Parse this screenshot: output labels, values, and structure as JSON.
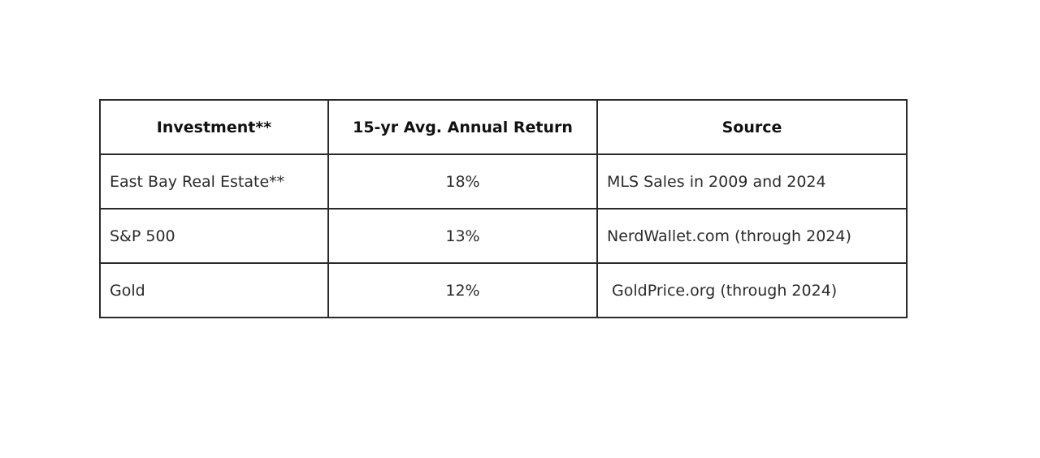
{
  "table": {
    "headers": [
      "Investment**",
      "15-yr Avg. Annual Return",
      "Source"
    ],
    "rows": [
      {
        "investment": "East Bay Real Estate**",
        "return": "18%",
        "source": "MLS Sales in 2009 and 2024"
      },
      {
        "investment": "S&P 500",
        "return": "13%",
        "source": "NerdWallet.com (through 2024)"
      },
      {
        "investment": "Gold",
        "return": "12%",
        "source": " GoldPrice.org (through 2024)"
      }
    ]
  }
}
